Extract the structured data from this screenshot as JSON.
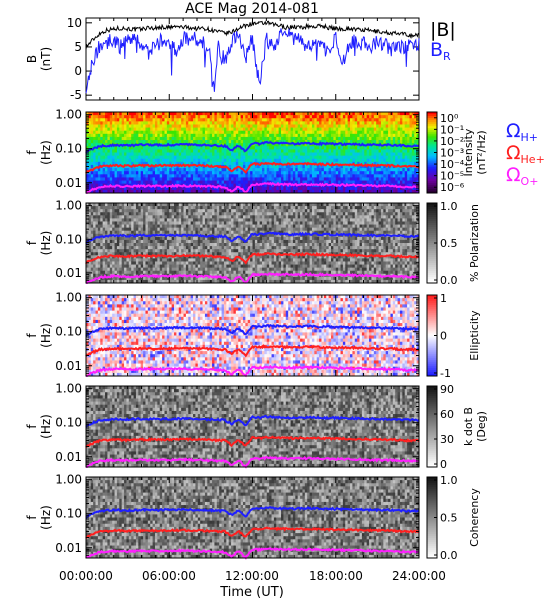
{
  "chart_data": {
    "title": "ACE Mag 2014-081",
    "x": {
      "label": "Time (UT)",
      "range_hours": [
        0,
        24
      ],
      "ticks": [
        "00:00:00",
        "06:00:00",
        "12:00:00",
        "18:00:00",
        "24:00:00"
      ]
    },
    "b_panel": {
      "type": "line",
      "ylabel": [
        "B",
        "(nT)"
      ],
      "ylim": [
        -6,
        11
      ],
      "yticks": [
        "-5",
        "0",
        "5",
        "10"
      ],
      "legend": [
        {
          "text": "|B|",
          "color": "#000000"
        },
        {
          "text": "B",
          "sub": "R",
          "color": "#1f1fff"
        }
      ],
      "series": [
        {
          "name": "|B|",
          "color": "#000000",
          "x": [
            0,
            0.5,
            1,
            1.5,
            2,
            2.5,
            3,
            3.5,
            4,
            4.5,
            5,
            5.5,
            6,
            6.5,
            7,
            7.5,
            8,
            8.5,
            9,
            9.5,
            10,
            10.5,
            11,
            11.5,
            12,
            12.5,
            13,
            13.5,
            14,
            14.5,
            15,
            15.5,
            16,
            16.5,
            17,
            17.5,
            18,
            18.5,
            19,
            19.5,
            20,
            20.5,
            21,
            21.5,
            22,
            22.5,
            23,
            23.5,
            24
          ],
          "y": [
            5,
            6.5,
            7.8,
            8.5,
            8.7,
            8.9,
            8.8,
            8.6,
            8.7,
            9.0,
            8.9,
            9.1,
            9.0,
            9.2,
            9.1,
            9.0,
            8.8,
            8.9,
            8.5,
            8.2,
            7.8,
            8.0,
            8.9,
            9.4,
            9.9,
            9.8,
            10.0,
            9.6,
            9.4,
            9.0,
            9.2,
            9.0,
            9.3,
            9.2,
            9.4,
            9.0,
            8.8,
            8.7,
            8.9,
            8.6,
            8.5,
            8.4,
            8.2,
            8.0,
            7.9,
            7.7,
            7.6,
            7.4,
            7.5
          ]
        },
        {
          "name": "B_R",
          "color": "#1f1fff",
          "x": [
            0,
            0.25,
            0.5,
            1,
            1.5,
            2,
            2.5,
            3,
            3.5,
            4,
            4.5,
            5,
            5.5,
            6,
            6.5,
            7,
            7.5,
            8,
            8.5,
            9,
            9.25,
            9.5,
            10,
            10.5,
            11,
            11.5,
            12,
            12.5,
            13,
            13.5,
            14,
            14.5,
            15,
            15.5,
            16,
            16.5,
            17,
            17.5,
            18,
            18.5,
            19,
            19.5,
            20,
            20.5,
            21,
            21.5,
            22,
            22.5,
            23,
            23.5,
            24
          ],
          "y": [
            -3,
            0,
            2,
            5.5,
            6,
            6.5,
            5,
            6.8,
            6.2,
            5.8,
            3.5,
            5.2,
            6.5,
            6.2,
            4,
            6.5,
            7,
            6.5,
            5.8,
            3.5,
            -5,
            5.5,
            2,
            6,
            7.5,
            2.5,
            7,
            -3,
            6.5,
            5,
            7.5,
            7.8,
            6.5,
            7,
            4.5,
            7.2,
            5.5,
            3.5,
            6.8,
            2,
            6,
            6.5,
            5.5,
            5,
            6,
            5.5,
            4.5,
            5.5,
            5,
            6,
            5.5
          ]
        }
      ]
    },
    "f_axis": {
      "ylabel": [
        "f",
        "(Hz)"
      ],
      "scale": "log",
      "ylim": [
        0.005,
        1.2
      ],
      "yticks": [
        "1.00",
        "0.10",
        "0.01"
      ]
    },
    "lines": [
      {
        "name": "Ω_H+",
        "color": "#1f1fff",
        "x": [
          0,
          0.5,
          1,
          2,
          3,
          4,
          5,
          6,
          7,
          8,
          9,
          10,
          10.5,
          11,
          11.5,
          12,
          12.5,
          13,
          14,
          15,
          16,
          17,
          18,
          19,
          20,
          21,
          22,
          23,
          24
        ],
        "y": [
          0.08,
          0.1,
          0.12,
          0.128,
          0.125,
          0.13,
          0.128,
          0.13,
          0.132,
          0.13,
          0.125,
          0.12,
          0.09,
          0.125,
          0.08,
          0.145,
          0.14,
          0.15,
          0.145,
          0.14,
          0.145,
          0.14,
          0.138,
          0.135,
          0.132,
          0.13,
          0.128,
          0.122,
          0.12
        ]
      },
      {
        "name": "Ω_He+",
        "color": "#ff1f1f",
        "x": [
          0,
          0.5,
          1,
          2,
          3,
          4,
          5,
          6,
          7,
          8,
          9,
          10,
          10.5,
          11,
          11.5,
          12,
          12.5,
          13,
          14,
          15,
          16,
          17,
          18,
          19,
          20,
          21,
          22,
          23,
          24
        ],
        "y": [
          0.02,
          0.025,
          0.03,
          0.032,
          0.031,
          0.032,
          0.032,
          0.032,
          0.033,
          0.032,
          0.031,
          0.03,
          0.022,
          0.031,
          0.02,
          0.036,
          0.035,
          0.037,
          0.036,
          0.035,
          0.036,
          0.035,
          0.034,
          0.034,
          0.033,
          0.032,
          0.032,
          0.03,
          0.03
        ]
      },
      {
        "name": "Ω_O+",
        "color": "#ff1fff",
        "x": [
          0,
          0.5,
          1,
          2,
          3,
          4,
          5,
          6,
          7,
          8,
          9,
          10,
          10.5,
          11,
          11.5,
          12,
          12.5,
          13,
          14,
          15,
          16,
          17,
          18,
          19,
          20,
          21,
          22,
          23,
          24
        ],
        "y": [
          0.005,
          0.0063,
          0.0075,
          0.008,
          0.0078,
          0.008,
          0.008,
          0.008,
          0.0082,
          0.008,
          0.0078,
          0.0075,
          0.0055,
          0.0078,
          0.005,
          0.009,
          0.0088,
          0.0093,
          0.009,
          0.0088,
          0.009,
          0.0088,
          0.0086,
          0.0085,
          0.0083,
          0.008,
          0.008,
          0.0076,
          0.0075
        ]
      }
    ],
    "spectrograms": [
      {
        "id": "intensity",
        "type": "heatmap",
        "colormap": "rainbow",
        "colorbar": {
          "label": [
            "Intensity",
            "(nT²/Hz)"
          ],
          "ticks": [
            "10⁰",
            "10⁻¹",
            "10⁻²",
            "10⁻³",
            "10⁻⁴",
            "10⁻⁵",
            "10⁻⁶"
          ],
          "range_log10": [
            -6.5,
            0.5
          ]
        },
        "legend": [
          {
            "symbol": "Ω",
            "sub": "H+",
            "color": "#1f1fff"
          },
          {
            "symbol": "Ω",
            "sub": "He+",
            "color": "#ff1f1f"
          },
          {
            "symbol": "Ω",
            "sub": "O+",
            "color": "#ff1fff"
          }
        ]
      },
      {
        "id": "polarization",
        "type": "heatmap",
        "colormap": "gray",
        "colorbar": {
          "label": [
            "% Polarization"
          ],
          "ticks": [
            "1.0",
            "0.5",
            "0.0"
          ],
          "range": [
            0,
            1
          ]
        }
      },
      {
        "id": "ellipticity",
        "type": "heatmap",
        "colormap": "bwr",
        "colorbar": {
          "label": [
            "Ellipticity"
          ],
          "ticks": [
            "1",
            "0",
            "-1"
          ],
          "range": [
            -1,
            1
          ]
        }
      },
      {
        "id": "kdotb",
        "type": "heatmap",
        "colormap": "gray",
        "colorbar": {
          "label": [
            "k dot B",
            "(Deg)"
          ],
          "ticks": [
            "90",
            "60",
            "30",
            "0"
          ],
          "range": [
            0,
            90
          ]
        }
      },
      {
        "id": "coherency",
        "type": "heatmap",
        "colormap": "gray",
        "colorbar": {
          "label": [
            "Coherency"
          ],
          "ticks": [
            "1.0",
            "0.5",
            "0.0"
          ],
          "range": [
            0,
            1
          ]
        }
      }
    ]
  }
}
